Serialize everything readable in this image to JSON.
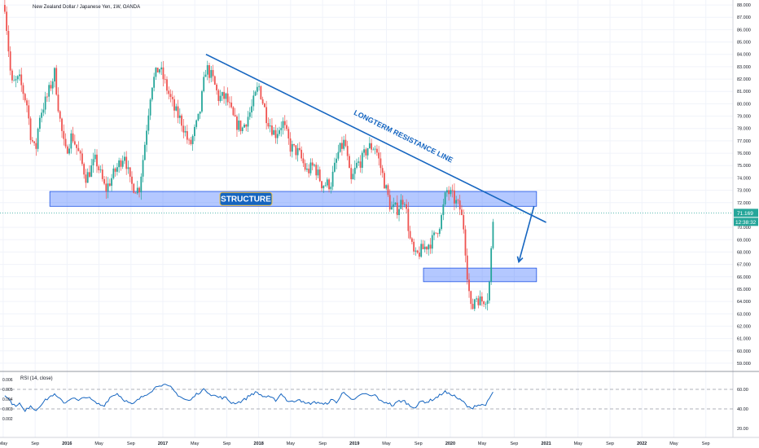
{
  "chart_data": {
    "type": "candlestick",
    "title": "New Zealand Dollar / Japanese Yen, 1W, OANDA",
    "main_ylim": [
      58.6,
      88.4
    ],
    "price_ticks": [
      59,
      60,
      61,
      62,
      63,
      64,
      65,
      66,
      67,
      68,
      69,
      70,
      72,
      73,
      74,
      75,
      76,
      77,
      78,
      79,
      80,
      81,
      82,
      83,
      84,
      85,
      86,
      87,
      88
    ],
    "price_tick_labels": [
      "59.000",
      "60.000",
      "61.000",
      "62.000",
      "63.000",
      "64.000",
      "65.000",
      "66.000",
      "67.000",
      "68.000",
      "69.000",
      "70.000",
      "72.000",
      "73.000",
      "74.000",
      "75.000",
      "76.000",
      "77.000",
      "78.000",
      "79.000",
      "80.000",
      "81.000",
      "82.000",
      "83.000",
      "84.000",
      "85.000",
      "86.000",
      "87.000",
      "88.000"
    ],
    "last_price_label": "71.169",
    "countdown_label": "12:38:32",
    "last_price": 71.17,
    "time_axis": {
      "range": [
        2015.3,
        2022.95
      ],
      "ticks": [
        {
          "t": 2015.333,
          "label": "May"
        },
        {
          "t": 2015.667,
          "label": "Sep"
        },
        {
          "t": 2016.0,
          "label": "2016"
        },
        {
          "t": 2016.333,
          "label": "May"
        },
        {
          "t": 2016.667,
          "label": "Sep"
        },
        {
          "t": 2017.0,
          "label": "2017"
        },
        {
          "t": 2017.333,
          "label": "May"
        },
        {
          "t": 2017.667,
          "label": "Sep"
        },
        {
          "t": 2018.0,
          "label": "2018"
        },
        {
          "t": 2018.333,
          "label": "May"
        },
        {
          "t": 2018.667,
          "label": "Sep"
        },
        {
          "t": 2019.0,
          "label": "2019"
        },
        {
          "t": 2019.333,
          "label": "May"
        },
        {
          "t": 2019.667,
          "label": "Sep"
        },
        {
          "t": 2020.0,
          "label": "2020"
        },
        {
          "t": 2020.333,
          "label": "May"
        },
        {
          "t": 2020.667,
          "label": "Sep"
        },
        {
          "t": 2021.0,
          "label": "2021"
        },
        {
          "t": 2021.333,
          "label": "May"
        },
        {
          "t": 2021.667,
          "label": "Sep"
        },
        {
          "t": 2022.0,
          "label": "2022"
        },
        {
          "t": 2022.333,
          "label": "May"
        },
        {
          "t": 2022.667,
          "label": "Sep"
        }
      ]
    },
    "price_anchors": [
      [
        2015.35,
        88.0
      ],
      [
        2015.42,
        81.5
      ],
      [
        2015.5,
        82.0
      ],
      [
        2015.58,
        80.0
      ],
      [
        2015.62,
        77.5
      ],
      [
        2015.67,
        76.0
      ],
      [
        2015.71,
        79.0
      ],
      [
        2015.79,
        80.5
      ],
      [
        2015.87,
        82.5
      ],
      [
        2015.92,
        79.0
      ],
      [
        2015.98,
        76.0
      ],
      [
        2016.05,
        77.5
      ],
      [
        2016.12,
        76.0
      ],
      [
        2016.2,
        74.0
      ],
      [
        2016.3,
        75.5
      ],
      [
        2016.4,
        73.0
      ],
      [
        2016.5,
        74.5
      ],
      [
        2016.6,
        76.0
      ],
      [
        2016.66,
        73.5
      ],
      [
        2016.75,
        73.0
      ],
      [
        2016.8,
        76.0
      ],
      [
        2016.88,
        81.5
      ],
      [
        2016.96,
        83.0
      ],
      [
        2017.03,
        81.5
      ],
      [
        2017.12,
        79.5
      ],
      [
        2017.2,
        78.5
      ],
      [
        2017.28,
        76.5
      ],
      [
        2017.38,
        79.0
      ],
      [
        2017.45,
        83.0
      ],
      [
        2017.52,
        82.0
      ],
      [
        2017.58,
        80.5
      ],
      [
        2017.66,
        80.5
      ],
      [
        2017.75,
        78.5
      ],
      [
        2017.83,
        78.0
      ],
      [
        2017.92,
        79.5
      ],
      [
        2018.0,
        81.5
      ],
      [
        2018.08,
        79.0
      ],
      [
        2018.17,
        77.5
      ],
      [
        2018.25,
        78.5
      ],
      [
        2018.33,
        76.5
      ],
      [
        2018.42,
        76.0
      ],
      [
        2018.5,
        74.5
      ],
      [
        2018.58,
        75.0
      ],
      [
        2018.66,
        73.5
      ],
      [
        2018.75,
        73.5
      ],
      [
        2018.83,
        76.0
      ],
      [
        2018.9,
        77.0
      ],
      [
        2018.96,
        73.5
      ],
      [
        2019.02,
        75.0
      ],
      [
        2019.08,
        75.5
      ],
      [
        2019.14,
        76.5
      ],
      [
        2019.22,
        76.5
      ],
      [
        2019.3,
        74.0
      ],
      [
        2019.38,
        71.5
      ],
      [
        2019.45,
        71.5
      ],
      [
        2019.52,
        72.5
      ],
      [
        2019.58,
        69.0
      ],
      [
        2019.63,
        67.5
      ],
      [
        2019.68,
        68.0
      ],
      [
        2019.75,
        68.5
      ],
      [
        2019.82,
        69.0
      ],
      [
        2019.9,
        70.5
      ],
      [
        2019.96,
        73.0
      ],
      [
        2020.02,
        72.5
      ],
      [
        2020.1,
        71.5
      ],
      [
        2020.14,
        70.0
      ],
      [
        2020.18,
        66.0
      ],
      [
        2020.22,
        63.0
      ],
      [
        2020.26,
        64.5
      ],
      [
        2020.32,
        64.0
      ],
      [
        2020.4,
        64.5
      ],
      [
        2020.45,
        71.17
      ]
    ],
    "resistance_line": {
      "label": "LONGTERM RESISTANCE LINE",
      "from": [
        2017.45,
        84.0
      ],
      "to": [
        2021.0,
        70.4
      ]
    },
    "projection_arrow": {
      "from": [
        2020.55,
        71.5
      ],
      "to": [
        2020.8,
        67.2
      ]
    },
    "zones": [
      {
        "label": "STRUCTURE",
        "t0": 2015.82,
        "t1": 2020.9,
        "y_low": 71.7,
        "y_high": 72.9
      },
      {
        "label": "",
        "t0": 2019.72,
        "t1": 2020.9,
        "y_low": 65.6,
        "y_high": 66.7
      }
    ],
    "rsi": {
      "label": "RSI (14, close)",
      "ylim": [
        0.0005,
        0.0065
      ],
      "ticks_left": [
        0.002,
        0.003,
        0.004,
        0.005,
        0.006
      ],
      "tick_labels_left": [
        "0.002",
        "0.003",
        "0.004",
        "0.005",
        "0.006"
      ],
      "ticks_right": [
        20,
        40,
        60
      ],
      "tick_labels_right": [
        "20.00",
        "40.00",
        "60.00"
      ],
      "upper_band": 60,
      "lower_band": 40,
      "anchors": [
        [
          2015.35,
          55
        ],
        [
          2015.45,
          43
        ],
        [
          2015.5,
          46
        ],
        [
          2015.56,
          37
        ],
        [
          2015.62,
          44
        ],
        [
          2015.67,
          38
        ],
        [
          2015.72,
          44
        ],
        [
          2015.8,
          51
        ],
        [
          2015.86,
          55
        ],
        [
          2015.92,
          50
        ],
        [
          2015.98,
          46
        ],
        [
          2016.05,
          52
        ],
        [
          2016.12,
          48
        ],
        [
          2016.2,
          53
        ],
        [
          2016.3,
          46
        ],
        [
          2016.38,
          43
        ],
        [
          2016.45,
          52
        ],
        [
          2016.52,
          56
        ],
        [
          2016.6,
          49
        ],
        [
          2016.68,
          44
        ],
        [
          2016.75,
          50
        ],
        [
          2016.84,
          56
        ],
        [
          2016.9,
          60
        ],
        [
          2016.96,
          65
        ],
        [
          2017.02,
          64
        ],
        [
          2017.08,
          62
        ],
        [
          2017.15,
          55
        ],
        [
          2017.22,
          50
        ],
        [
          2017.28,
          48
        ],
        [
          2017.36,
          56
        ],
        [
          2017.44,
          60
        ],
        [
          2017.5,
          55
        ],
        [
          2017.58,
          52
        ],
        [
          2017.66,
          51
        ],
        [
          2017.72,
          46
        ],
        [
          2017.8,
          47
        ],
        [
          2017.86,
          50
        ],
        [
          2017.92,
          55
        ],
        [
          2017.98,
          57
        ],
        [
          2018.04,
          53
        ],
        [
          2018.1,
          52
        ],
        [
          2018.18,
          49
        ],
        [
          2018.24,
          56
        ],
        [
          2018.3,
          48
        ],
        [
          2018.36,
          47
        ],
        [
          2018.42,
          51
        ],
        [
          2018.48,
          45
        ],
        [
          2018.55,
          46
        ],
        [
          2018.62,
          47
        ],
        [
          2018.68,
          44
        ],
        [
          2018.76,
          49
        ],
        [
          2018.82,
          47
        ],
        [
          2018.88,
          57
        ],
        [
          2018.94,
          54
        ],
        [
          2018.98,
          48
        ],
        [
          2019.04,
          52
        ],
        [
          2019.1,
          56
        ],
        [
          2019.16,
          53
        ],
        [
          2019.22,
          54
        ],
        [
          2019.28,
          47
        ],
        [
          2019.34,
          47
        ],
        [
          2019.4,
          43
        ],
        [
          2019.46,
          48
        ],
        [
          2019.52,
          48
        ],
        [
          2019.58,
          43
        ],
        [
          2019.64,
          42
        ],
        [
          2019.7,
          48
        ],
        [
          2019.76,
          47
        ],
        [
          2019.82,
          50
        ],
        [
          2019.88,
          53
        ],
        [
          2019.94,
          58
        ],
        [
          2019.98,
          55
        ],
        [
          2020.02,
          55
        ],
        [
          2020.06,
          52
        ],
        [
          2020.1,
          49
        ],
        [
          2020.14,
          47
        ],
        [
          2020.18,
          42
        ],
        [
          2020.22,
          40
        ],
        [
          2020.26,
          44
        ],
        [
          2020.3,
          44
        ],
        [
          2020.36,
          44
        ],
        [
          2020.4,
          48
        ],
        [
          2020.45,
          58
        ]
      ]
    }
  }
}
